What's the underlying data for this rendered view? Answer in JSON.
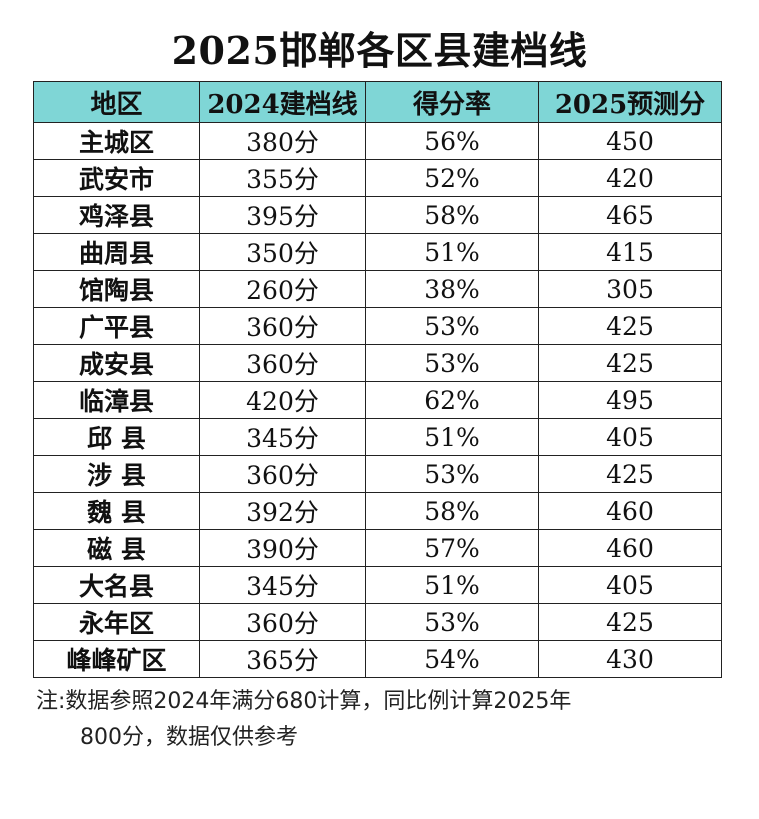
{
  "title": "2025邯郸各区县建档线",
  "table": {
    "headers": [
      "地区",
      "2024建档线",
      "得分率",
      "2025预测分"
    ],
    "rows": [
      [
        "主城区",
        "380分",
        "56%",
        "450"
      ],
      [
        "武安市",
        "355分",
        "52%",
        "420"
      ],
      [
        "鸡泽县",
        "395分",
        "58%",
        "465"
      ],
      [
        "曲周县",
        "350分",
        "51%",
        "415"
      ],
      [
        "馆陶县",
        "260分",
        "38%",
        "305"
      ],
      [
        "广平县",
        "360分",
        "53%",
        "425"
      ],
      [
        "成安县",
        "360分",
        "53%",
        "425"
      ],
      [
        "临漳县",
        "420分",
        "62%",
        "495"
      ],
      [
        "邱 县",
        "345分",
        "51%",
        "405"
      ],
      [
        "涉 县",
        "360分",
        "53%",
        "425"
      ],
      [
        "魏 县",
        "392分",
        "58%",
        "460"
      ],
      [
        "磁 县",
        "390分",
        "57%",
        "460"
      ],
      [
        "大名县",
        "345分",
        "51%",
        "405"
      ],
      [
        "永年区",
        "360分",
        "53%",
        "425"
      ],
      [
        "峰峰矿区",
        "365分",
        "54%",
        "430"
      ]
    ]
  },
  "note": {
    "line1": "注:数据参照2024年满分680计算，同比例计算2025年",
    "line2": "800分，数据仅供参考"
  },
  "colors": {
    "header_bg": "#7fd6d6",
    "border": "#222222",
    "text": "#111111"
  }
}
